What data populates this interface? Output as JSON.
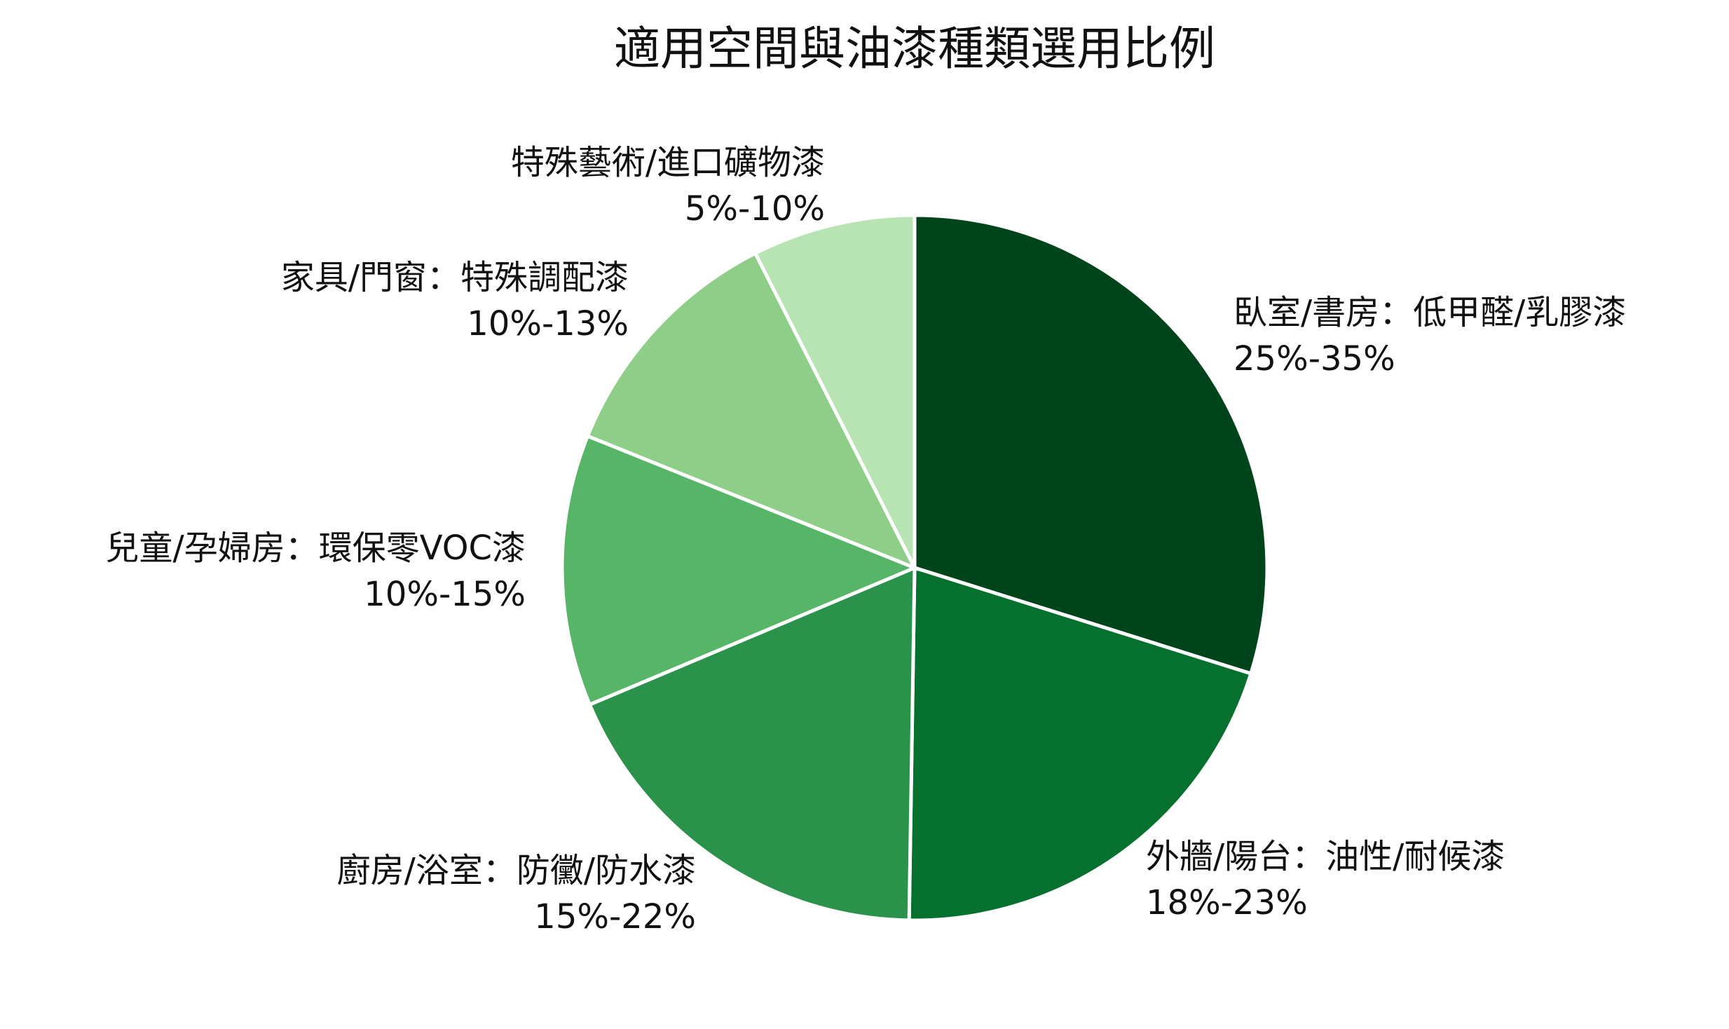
{
  "chart_data": {
    "type": "pie",
    "title": "適用空間與油漆種類選用比例",
    "start_angle_deg": 90,
    "direction": "clockwise",
    "slices": [
      {
        "name": "臥室/書房：低甲醛/乳膠漆",
        "range_label": "25%-35%",
        "value": 30.0,
        "color": "#00441b"
      },
      {
        "name": "外牆/陽台：油性/耐候漆",
        "range_label": "18%-23%",
        "value": 20.5,
        "color": "#06702f"
      },
      {
        "name": "廚房/浴室：防黴/防水漆",
        "range_label": "15%-22%",
        "value": 18.5,
        "color": "#2b924c"
      },
      {
        "name": "兒童/孕婦房：環保零VOC漆",
        "range_label": "10%-15%",
        "value": 12.5,
        "color": "#57b567"
      },
      {
        "name": "家具/門窗：特殊調配漆",
        "range_label": "10%-13%",
        "value": 11.5,
        "color": "#8fce88"
      },
      {
        "name": "特殊藝術/進口礦物漆",
        "range_label": "5%-10%",
        "value": 7.5,
        "color": "#b8e3b2"
      }
    ]
  }
}
